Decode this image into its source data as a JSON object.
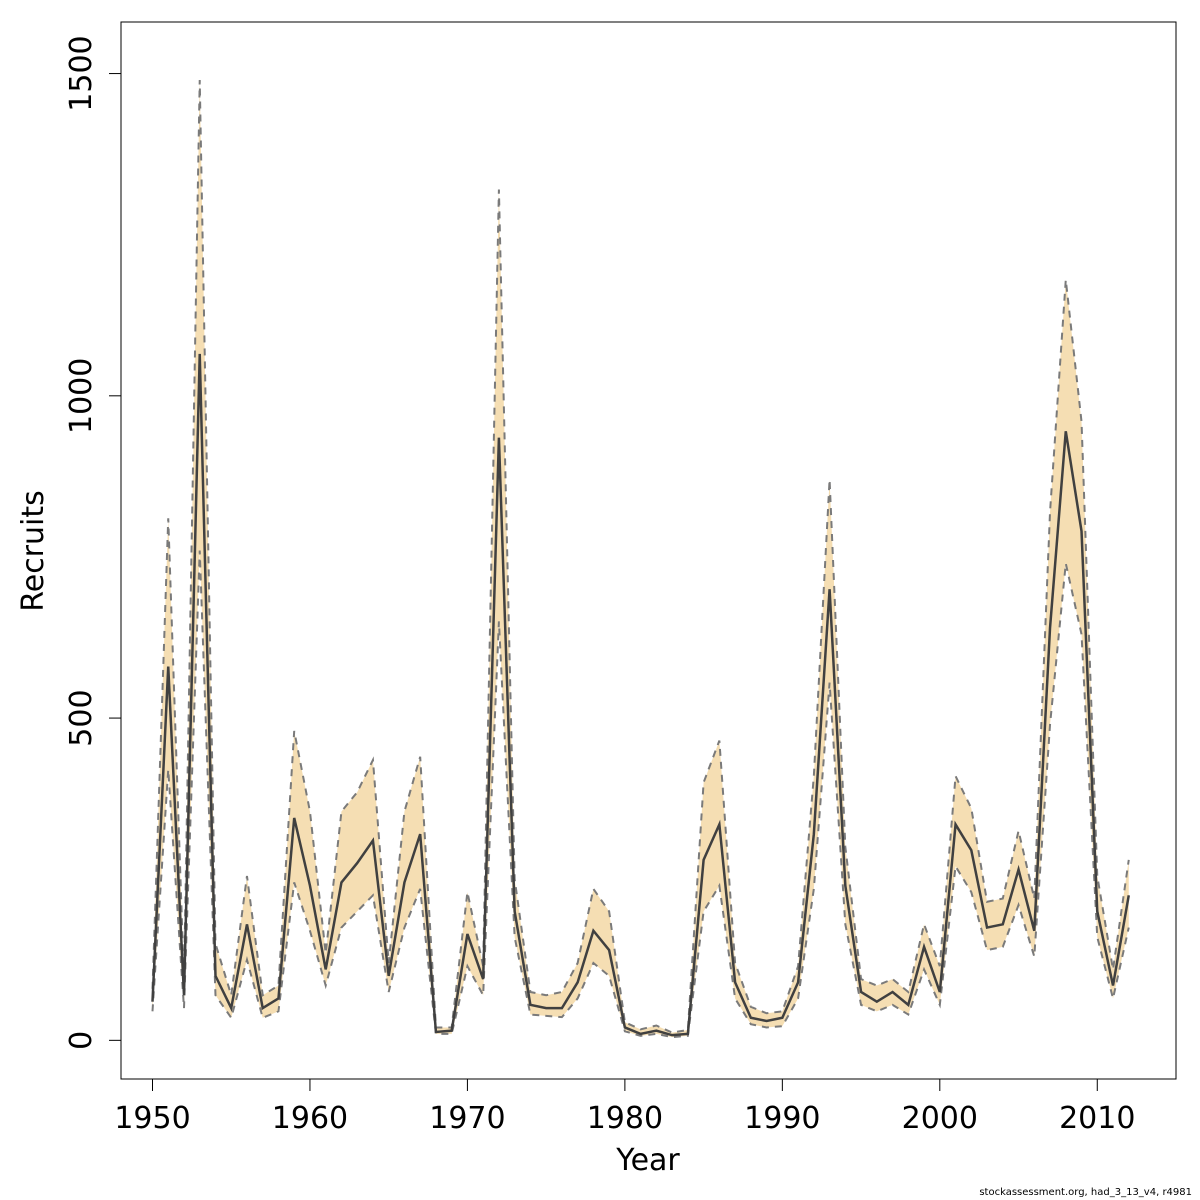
{
  "chart_data": {
    "type": "line",
    "xlabel": "Year",
    "ylabel": "Recruits",
    "xlim": [
      1948,
      2015
    ],
    "ylim": [
      -60,
      1580
    ],
    "x_ticks": [
      1950,
      1960,
      1970,
      1980,
      1990,
      2000,
      2010
    ],
    "y_ticks": [
      0,
      500,
      1000,
      1500
    ],
    "band_color": "#f5deb3",
    "line_color": "#404040",
    "dash_color": "#7a7a7a",
    "x": [
      1950,
      1951,
      1952,
      1953,
      1954,
      1955,
      1956,
      1957,
      1958,
      1959,
      1960,
      1961,
      1962,
      1963,
      1964,
      1965,
      1966,
      1967,
      1968,
      1969,
      1970,
      1971,
      1972,
      1973,
      1974,
      1975,
      1976,
      1977,
      1978,
      1979,
      1980,
      1981,
      1982,
      1983,
      1984,
      1985,
      1986,
      1987,
      1988,
      1989,
      1990,
      1991,
      1992,
      1993,
      1994,
      1995,
      1996,
      1997,
      1998,
      1999,
      2000,
      2001,
      2002,
      2003,
      2004,
      2005,
      2006,
      2007,
      2008,
      2009,
      2010,
      2011,
      2012
    ],
    "series": [
      {
        "values": [
          60,
          580,
          70,
          1065,
          100,
          50,
          180,
          50,
          65,
          345,
          240,
          110,
          245,
          275,
          310,
          100,
          245,
          320,
          13,
          15,
          165,
          95,
          935,
          200,
          55,
          50,
          50,
          90,
          170,
          140,
          20,
          10,
          15,
          8,
          10,
          280,
          335,
          90,
          35,
          30,
          35,
          90,
          320,
          700,
          240,
          75,
          60,
          75,
          55,
          145,
          75,
          335,
          295,
          175,
          180,
          265,
          170,
          640,
          945,
          790,
          200,
          85,
          225
        ]
      },
      {
        "values": [
          80,
          810,
          90,
          1490,
          150,
          70,
          255,
          70,
          85,
          480,
          355,
          135,
          355,
          385,
          435,
          120,
          355,
          440,
          20,
          20,
          230,
          115,
          1320,
          250,
          75,
          70,
          75,
          120,
          235,
          200,
          28,
          17,
          23,
          12,
          16,
          400,
          465,
          120,
          52,
          42,
          45,
          115,
          410,
          870,
          300,
          95,
          85,
          95,
          75,
          180,
          115,
          410,
          360,
          215,
          220,
          325,
          220,
          820,
          1180,
          960,
          255,
          110,
          280
        ]
      },
      {
        "values": [
          45,
          420,
          50,
          760,
          70,
          35,
          125,
          35,
          45,
          245,
          170,
          85,
          175,
          200,
          225,
          75,
          175,
          235,
          10,
          10,
          115,
          70,
          650,
          160,
          40,
          38,
          36,
          65,
          120,
          100,
          14,
          7,
          10,
          5,
          7,
          200,
          240,
          65,
          25,
          20,
          22,
          65,
          235,
          555,
          180,
          55,
          45,
          55,
          40,
          110,
          55,
          270,
          230,
          140,
          145,
          210,
          130,
          490,
          740,
          630,
          160,
          65,
          175
        ]
      }
    ]
  },
  "footer_text": "stockassessment.org, had_3_13_v4, r4981"
}
